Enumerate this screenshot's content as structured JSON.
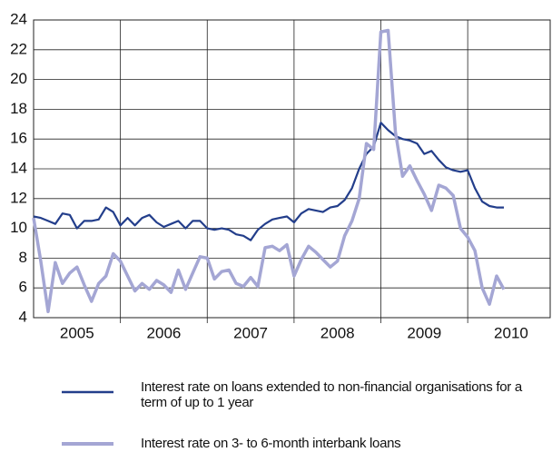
{
  "chart_data": {
    "type": "line",
    "x": [
      2005.0,
      2005.083,
      2005.167,
      2005.25,
      2005.333,
      2005.417,
      2005.5,
      2005.583,
      2005.667,
      2005.75,
      2005.833,
      2005.917,
      2006.0,
      2006.083,
      2006.167,
      2006.25,
      2006.333,
      2006.417,
      2006.5,
      2006.583,
      2006.667,
      2006.75,
      2006.833,
      2006.917,
      2007.0,
      2007.083,
      2007.167,
      2007.25,
      2007.333,
      2007.417,
      2007.5,
      2007.583,
      2007.667,
      2007.75,
      2007.833,
      2007.917,
      2008.0,
      2008.083,
      2008.167,
      2008.25,
      2008.333,
      2008.417,
      2008.5,
      2008.583,
      2008.667,
      2008.75,
      2008.833,
      2008.917,
      2009.0,
      2009.083,
      2009.167,
      2009.25,
      2009.333,
      2009.417,
      2009.5,
      2009.583,
      2009.667,
      2009.75,
      2009.833,
      2009.917,
      2010.0,
      2010.083,
      2010.167,
      2010.25,
      2010.333,
      2010.417
    ],
    "series": [
      {
        "name": "Interest rate on loans extended to non-financial organisations for a term of up to 1 year",
        "color": "#233e8b",
        "values": [
          10.8,
          10.7,
          10.5,
          10.3,
          11.0,
          10.9,
          10.0,
          10.5,
          10.5,
          10.6,
          11.4,
          11.1,
          10.2,
          10.7,
          10.2,
          10.7,
          10.9,
          10.4,
          10.1,
          10.3,
          10.5,
          10.0,
          10.5,
          10.5,
          10.0,
          9.9,
          10.0,
          9.9,
          9.6,
          9.5,
          9.2,
          9.9,
          10.3,
          10.6,
          10.7,
          10.8,
          10.4,
          11.0,
          11.3,
          11.2,
          11.1,
          11.4,
          11.5,
          11.9,
          12.7,
          14.0,
          15.0,
          15.5,
          17.1,
          16.6,
          16.2,
          16.0,
          15.9,
          15.7,
          15.0,
          15.2,
          14.6,
          14.1,
          13.9,
          13.8,
          13.9,
          12.7,
          11.8,
          11.5,
          11.4,
          11.4
        ]
      },
      {
        "name": "Interest rate on 3- to 6-month interbank loans",
        "color": "#a4a6d4",
        "values": [
          10.7,
          7.8,
          4.4,
          7.7,
          6.3,
          7.0,
          7.4,
          6.2,
          5.1,
          6.3,
          6.8,
          8.3,
          7.8,
          6.8,
          5.8,
          6.3,
          5.9,
          6.5,
          6.2,
          5.7,
          7.2,
          5.9,
          7.0,
          8.1,
          8.0,
          6.6,
          7.1,
          7.2,
          6.3,
          6.1,
          6.7,
          6.1,
          8.7,
          8.8,
          8.5,
          8.9,
          6.8,
          7.9,
          8.8,
          8.4,
          7.9,
          7.4,
          7.8,
          9.5,
          10.5,
          12.0,
          15.7,
          15.3,
          23.2,
          23.3,
          16.5,
          13.5,
          14.2,
          13.2,
          12.3,
          11.2,
          12.9,
          12.7,
          12.2,
          10.0,
          9.4,
          8.5,
          6.0,
          4.9,
          6.8,
          5.9
        ]
      }
    ],
    "xlim": [
      2005.0,
      2010.95
    ],
    "xticks": [
      {
        "value": 2005.5,
        "label": "2005"
      },
      {
        "value": 2006.5,
        "label": "2006"
      },
      {
        "value": 2007.5,
        "label": "2007"
      },
      {
        "value": 2008.5,
        "label": "2008"
      },
      {
        "value": 2009.5,
        "label": "2009"
      },
      {
        "value": 2010.5,
        "label": "2010"
      }
    ],
    "xgrid": [
      2006,
      2007,
      2008,
      2009,
      2010
    ],
    "ylim": [
      4,
      24
    ],
    "yticks": [
      4,
      6,
      8,
      10,
      12,
      14,
      16,
      18,
      20,
      22,
      24
    ],
    "grid": true
  }
}
